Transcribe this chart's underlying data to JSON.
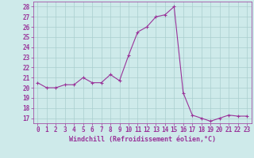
{
  "x": [
    0,
    1,
    2,
    3,
    4,
    5,
    6,
    7,
    8,
    9,
    10,
    11,
    12,
    13,
    14,
    15,
    16,
    17,
    18,
    19,
    20,
    21,
    22,
    23
  ],
  "y": [
    20.5,
    20.0,
    20.0,
    20.3,
    20.3,
    21.0,
    20.5,
    20.5,
    21.3,
    20.7,
    23.2,
    25.5,
    26.0,
    27.0,
    27.2,
    28.0,
    19.5,
    17.3,
    17.0,
    16.7,
    17.0,
    17.3,
    17.2,
    17.2
  ],
  "line_color": "#993399",
  "marker": "+",
  "marker_size": 3,
  "marker_linewidth": 0.8,
  "line_width": 0.8,
  "xlabel": "Windchill (Refroidissement éolien,°C)",
  "ylabel": "",
  "xlim": [
    -0.5,
    23.5
  ],
  "ylim": [
    16.5,
    28.5
  ],
  "yticks": [
    17,
    18,
    19,
    20,
    21,
    22,
    23,
    24,
    25,
    26,
    27,
    28
  ],
  "xticks": [
    0,
    1,
    2,
    3,
    4,
    5,
    6,
    7,
    8,
    9,
    10,
    11,
    12,
    13,
    14,
    15,
    16,
    17,
    18,
    19,
    20,
    21,
    22,
    23
  ],
  "background_color": "#ceeaea",
  "grid_color": "#aacece",
  "tick_label_color": "#993399",
  "xlabel_color": "#993399",
  "axis_color": "#993399",
  "tick_fontsize": 5.5,
  "xlabel_fontsize": 6.0
}
